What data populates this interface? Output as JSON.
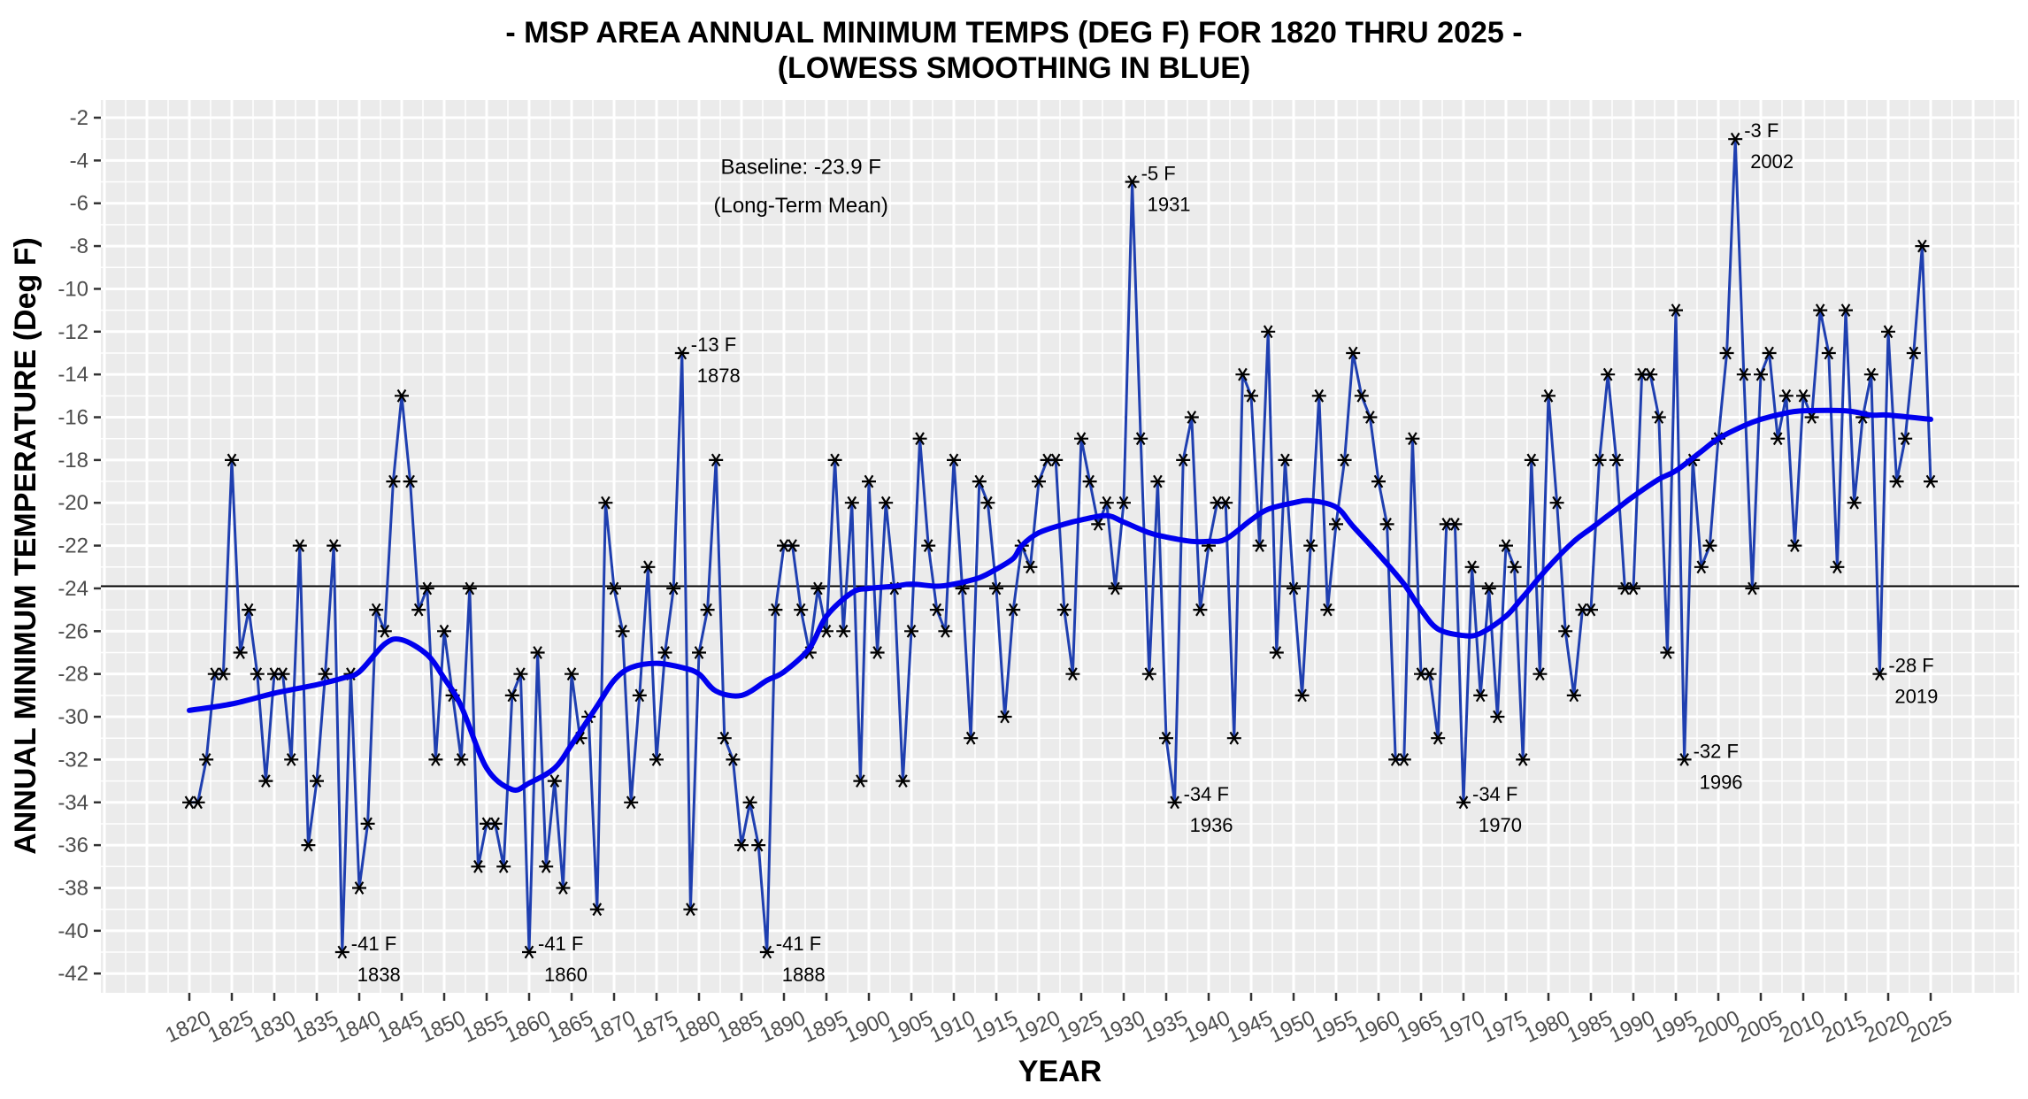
{
  "chart_data": {
    "type": "line",
    "title": "- MSP AREA ANNUAL MINIMUM TEMPS (DEG F) FOR 1820 THRU 2025 -",
    "subtitle": "(LOWESS SMOOTHING IN BLUE)",
    "xlabel": "YEAR",
    "ylabel": "ANNUAL MINIMUM TEMPERATURE (Deg F)",
    "xlim": [
      1820,
      2025
    ],
    "ylim": [
      -42,
      -2
    ],
    "grid": true,
    "x_ticks": [
      1820,
      1825,
      1830,
      1835,
      1840,
      1845,
      1850,
      1855,
      1860,
      1865,
      1870,
      1875,
      1880,
      1885,
      1890,
      1895,
      1900,
      1905,
      1910,
      1915,
      1920,
      1925,
      1930,
      1935,
      1940,
      1945,
      1950,
      1955,
      1960,
      1965,
      1970,
      1975,
      1980,
      1985,
      1990,
      1995,
      2000,
      2005,
      2010,
      2015,
      2020,
      2025
    ],
    "y_ticks": [
      -2,
      -4,
      -6,
      -8,
      -10,
      -12,
      -14,
      -16,
      -18,
      -20,
      -22,
      -24,
      -26,
      -28,
      -30,
      -32,
      -34,
      -36,
      -38,
      -40,
      -42
    ],
    "colors": {
      "series_line": "#1f3fb0",
      "marker": "#000000",
      "lowess": "#0000ee",
      "baseline": "#000000",
      "panel_bg": "#ebebeb",
      "grid": "#ffffff"
    },
    "baseline": {
      "value": -23.9,
      "label_line1": "Baseline: -23.9 F",
      "label_line2": "(Long-Term Mean)"
    },
    "series": [
      {
        "name": "Annual Minimum Temperature",
        "marker": "asterisk",
        "start_year": 1820,
        "values": [
          -34,
          -34,
          -32,
          -28,
          -28,
          -18,
          -27,
          -25,
          -28,
          -33,
          -28,
          -28,
          -32,
          -22,
          -36,
          -33,
          -28,
          -22,
          -41,
          -28,
          -38,
          -35,
          -25,
          -26,
          -19,
          -15,
          -19,
          -25,
          -24,
          -32,
          -26,
          -29,
          -32,
          -24,
          -37,
          -35,
          -35,
          -37,
          -29,
          -28,
          -41,
          -27,
          -37,
          -33,
          -38,
          -28,
          -31,
          -30,
          -39,
          -20,
          -24,
          -26,
          -34,
          -29,
          -23,
          -32,
          -27,
          -24,
          -13,
          -39,
          -27,
          -25,
          -18,
          -31,
          -32,
          -36,
          -34,
          -36,
          -41,
          -25,
          -22,
          -22,
          -25,
          -27,
          -24,
          -26,
          -18,
          -26,
          -20,
          -33,
          -19,
          -27,
          -20,
          -24,
          -33,
          -26,
          -17,
          -22,
          -25,
          -26,
          -18,
          -24,
          -31,
          -19,
          -20,
          -24,
          -30,
          -25,
          -22,
          -23,
          -19,
          -18,
          -18,
          -25,
          -28,
          -17,
          -19,
          -21,
          -20,
          -24,
          -20,
          -5,
          -17,
          -28,
          -19,
          -31,
          -34,
          -18,
          -16,
          -25,
          -22,
          -20,
          -20,
          -31,
          -14,
          -15,
          -22,
          -12,
          -27,
          -18,
          -24,
          -29,
          -22,
          -15,
          -25,
          -21,
          -18,
          -13,
          -15,
          -16,
          -19,
          -21,
          -32,
          -32,
          -17,
          -28,
          -28,
          -31,
          -21,
          -21,
          -34,
          -23,
          -29,
          -24,
          -30,
          -22,
          -23,
          -32,
          -18,
          -28,
          -15,
          -20,
          -26,
          -29,
          -25,
          -25,
          -18,
          -14,
          -18,
          -24,
          -24,
          -14,
          -14,
          -16,
          -27,
          -11,
          -32,
          -18,
          -23,
          -22,
          -17,
          -13,
          -3,
          -14,
          -24,
          -14,
          -13,
          -17,
          -15,
          -22,
          -15,
          -16,
          -11,
          -13,
          -23,
          -11,
          -20,
          -16,
          -14,
          -28,
          -12,
          -19,
          -17,
          -13,
          -8,
          -19
        ]
      },
      {
        "name": "LOWESS Smoothing",
        "points": [
          [
            1820,
            -29.7
          ],
          [
            1825,
            -29.4
          ],
          [
            1830,
            -28.9
          ],
          [
            1835,
            -28.5
          ],
          [
            1838,
            -28.2
          ],
          [
            1840,
            -27.9
          ],
          [
            1843,
            -26.6
          ],
          [
            1845,
            -26.4
          ],
          [
            1848,
            -27.1
          ],
          [
            1850,
            -28.2
          ],
          [
            1852,
            -29.5
          ],
          [
            1855,
            -32.4
          ],
          [
            1858,
            -33.4
          ],
          [
            1860,
            -33.1
          ],
          [
            1863,
            -32.4
          ],
          [
            1865,
            -31.3
          ],
          [
            1868,
            -29.5
          ],
          [
            1870,
            -28.3
          ],
          [
            1872,
            -27.7
          ],
          [
            1875,
            -27.5
          ],
          [
            1878,
            -27.7
          ],
          [
            1880,
            -28.0
          ],
          [
            1882,
            -28.8
          ],
          [
            1885,
            -29.0
          ],
          [
            1888,
            -28.3
          ],
          [
            1890,
            -27.9
          ],
          [
            1893,
            -26.8
          ],
          [
            1895,
            -25.3
          ],
          [
            1898,
            -24.2
          ],
          [
            1900,
            -24.0
          ],
          [
            1903,
            -23.9
          ],
          [
            1905,
            -23.8
          ],
          [
            1908,
            -23.9
          ],
          [
            1910,
            -23.8
          ],
          [
            1913,
            -23.5
          ],
          [
            1915,
            -23.1
          ],
          [
            1917,
            -22.6
          ],
          [
            1918,
            -22.0
          ],
          [
            1920,
            -21.4
          ],
          [
            1923,
            -21.0
          ],
          [
            1925,
            -20.8
          ],
          [
            1928,
            -20.6
          ],
          [
            1930,
            -20.9
          ],
          [
            1933,
            -21.4
          ],
          [
            1935,
            -21.6
          ],
          [
            1938,
            -21.8
          ],
          [
            1940,
            -21.8
          ],
          [
            1942,
            -21.7
          ],
          [
            1945,
            -20.8
          ],
          [
            1947,
            -20.3
          ],
          [
            1950,
            -20.0
          ],
          [
            1952,
            -19.9
          ],
          [
            1955,
            -20.2
          ],
          [
            1957,
            -21.1
          ],
          [
            1960,
            -22.4
          ],
          [
            1963,
            -23.8
          ],
          [
            1965,
            -25.0
          ],
          [
            1967,
            -25.9
          ],
          [
            1970,
            -26.2
          ],
          [
            1972,
            -26.1
          ],
          [
            1975,
            -25.3
          ],
          [
            1977,
            -24.4
          ],
          [
            1980,
            -23.0
          ],
          [
            1983,
            -21.8
          ],
          [
            1985,
            -21.2
          ],
          [
            1988,
            -20.3
          ],
          [
            1990,
            -19.7
          ],
          [
            1993,
            -18.9
          ],
          [
            1995,
            -18.5
          ],
          [
            1998,
            -17.6
          ],
          [
            2000,
            -17.0
          ],
          [
            2003,
            -16.4
          ],
          [
            2005,
            -16.1
          ],
          [
            2008,
            -15.8
          ],
          [
            2010,
            -15.7
          ],
          [
            2015,
            -15.7
          ],
          [
            2018,
            -15.9
          ],
          [
            2020,
            -15.9
          ],
          [
            2025,
            -16.1
          ]
        ]
      }
    ],
    "annotations": [
      {
        "year": 1838,
        "value": -41,
        "line1": "-41 F",
        "line2": "1838"
      },
      {
        "year": 1860,
        "value": -41,
        "line1": "-41 F",
        "line2": "1860"
      },
      {
        "year": 1878,
        "value": -13,
        "line1": "-13 F",
        "line2": "1878"
      },
      {
        "year": 1888,
        "value": -41,
        "line1": "-41 F",
        "line2": "1888"
      },
      {
        "year": 1931,
        "value": -5,
        "line1": "-5 F",
        "line2": "1931"
      },
      {
        "year": 1936,
        "value": -34,
        "line1": "-34 F",
        "line2": "1936"
      },
      {
        "year": 1970,
        "value": -34,
        "line1": "-34 F",
        "line2": "1970"
      },
      {
        "year": 1996,
        "value": -32,
        "line1": "-32 F",
        "line2": "1996"
      },
      {
        "year": 2002,
        "value": -3,
        "line1": "-3 F",
        "line2": "2002"
      },
      {
        "year": 2019,
        "value": -28,
        "line1": "-28 F",
        "line2": "2019"
      }
    ]
  }
}
